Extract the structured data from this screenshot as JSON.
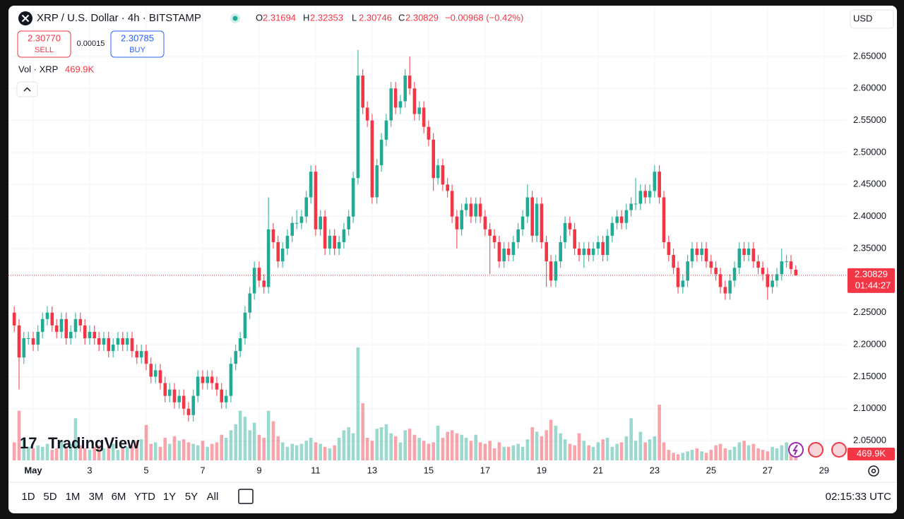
{
  "ui": {
    "symbol": "XRP / U.S. Dollar · 4h · BITSTAMP",
    "ohlc_keys": [
      "O",
      "H",
      "L",
      "C"
    ],
    "change": "−0.00968 (−0.42%)",
    "sell_price": "2.30770",
    "sell": "SELL",
    "spread": "0.00015",
    "buy_price": "2.30785",
    "buy": "BUY",
    "vol_label": "Vol · XRP",
    "vol_value": "469.9K",
    "currency": "USD",
    "countdown": "01:44:27",
    "logo": "TradingView",
    "ranges": [
      "1D",
      "5D",
      "1M",
      "3M",
      "6M",
      "YTD",
      "1Y",
      "5Y",
      "All"
    ],
    "clock": "02:15:33 UTC"
  },
  "chart_data": {
    "type": "candlestick",
    "up_color": "#22ab94",
    "down_color": "#f23645",
    "grid": true,
    "xlim": [
      0.2,
      29.78
    ],
    "ylim": [
      2.016,
      2.727
    ],
    "xticks": [
      {
        "value": 1,
        "label": "May"
      },
      3,
      5,
      7,
      9,
      11,
      13,
      15,
      17,
      19,
      21,
      23,
      25,
      27,
      29
    ],
    "yticks": [
      {
        "value": 2.05,
        "label": "2.05000"
      },
      {
        "value": 2.1,
        "label": "2.10000"
      },
      {
        "value": 2.15,
        "label": "2.15000"
      },
      {
        "value": 2.2,
        "label": "2.20000"
      },
      {
        "value": 2.25,
        "label": "2.25000"
      },
      {
        "value": 2.35,
        "label": "2.35000"
      },
      {
        "value": 2.4,
        "label": "2.40000"
      },
      {
        "value": 2.45,
        "label": "2.45000"
      },
      {
        "value": 2.5,
        "label": "2.50000"
      },
      {
        "value": 2.55,
        "label": "2.55000"
      },
      {
        "value": 2.6,
        "label": "2.60000"
      },
      {
        "value": 2.65,
        "label": "2.65000"
      }
    ],
    "x": [
      0.33,
      0.5,
      0.67,
      0.83,
      1,
      1.17,
      1.33,
      1.5,
      1.67,
      1.83,
      2,
      2.17,
      2.33,
      2.5,
      2.67,
      2.83,
      3,
      3.17,
      3.33,
      3.5,
      3.67,
      3.83,
      4,
      4.17,
      4.33,
      4.5,
      4.67,
      4.83,
      5,
      5.17,
      5.33,
      5.5,
      5.67,
      5.83,
      6,
      6.17,
      6.33,
      6.5,
      6.67,
      6.83,
      7,
      7.17,
      7.33,
      7.5,
      7.67,
      7.83,
      8,
      8.17,
      8.33,
      8.5,
      8.67,
      8.83,
      9,
      9.17,
      9.33,
      9.5,
      9.67,
      9.83,
      10,
      10.17,
      10.33,
      10.5,
      10.67,
      10.83,
      11,
      11.17,
      11.33,
      11.5,
      11.67,
      11.83,
      12,
      12.17,
      12.33,
      12.5,
      12.67,
      12.83,
      13,
      13.17,
      13.33,
      13.5,
      13.67,
      13.83,
      14,
      14.17,
      14.33,
      14.5,
      14.67,
      14.83,
      15,
      15.17,
      15.33,
      15.5,
      15.67,
      15.83,
      16,
      16.17,
      16.33,
      16.5,
      16.67,
      16.83,
      17,
      17.17,
      17.33,
      17.5,
      17.67,
      17.83,
      18,
      18.17,
      18.33,
      18.5,
      18.67,
      18.83,
      19,
      19.17,
      19.33,
      19.5,
      19.67,
      19.83,
      20,
      20.17,
      20.33,
      20.5,
      20.67,
      20.83,
      21,
      21.17,
      21.33,
      21.5,
      21.67,
      21.83,
      22,
      22.17,
      22.33,
      22.5,
      22.67,
      22.83,
      23,
      23.17,
      23.33,
      23.5,
      23.67,
      23.83,
      24,
      24.17,
      24.33,
      24.5,
      24.67,
      24.83,
      25,
      25.17,
      25.33,
      25.5,
      25.67,
      25.83,
      26,
      26.17,
      26.33,
      26.5,
      26.67,
      26.83,
      27,
      27.17,
      27.33,
      27.5,
      27.67,
      27.83,
      28
    ],
    "open": [
      2.25,
      2.23,
      2.18,
      2.21,
      2.21,
      2.2,
      2.22,
      2.24,
      2.25,
      2.23,
      2.22,
      2.24,
      2.21,
      2.22,
      2.24,
      2.23,
      2.21,
      2.22,
      2.21,
      2.2,
      2.21,
      2.19,
      2.2,
      2.21,
      2.2,
      2.21,
      2.19,
      2.18,
      2.19,
      2.17,
      2.15,
      2.16,
      2.14,
      2.12,
      2.13,
      2.11,
      2.12,
      2.1,
      2.09,
      2.12,
      2.15,
      2.14,
      2.15,
      2.14,
      2.13,
      2.11,
      2.12,
      2.17,
      2.19,
      2.21,
      2.25,
      2.28,
      2.32,
      2.3,
      2.29,
      2.38,
      2.36,
      2.33,
      2.35,
      2.37,
      2.39,
      2.39,
      2.4,
      2.43,
      2.47,
      2.38,
      2.4,
      2.35,
      2.37,
      2.35,
      2.36,
      2.38,
      2.4,
      2.46,
      2.62,
      2.57,
      2.55,
      2.43,
      2.48,
      2.52,
      2.55,
      2.6,
      2.57,
      2.58,
      2.62,
      2.6,
      2.56,
      2.57,
      2.54,
      2.52,
      2.46,
      2.48,
      2.45,
      2.44,
      2.4,
      2.38,
      2.41,
      2.42,
      2.4,
      2.42,
      2.4,
      2.38,
      2.37,
      2.36,
      2.33,
      2.35,
      2.34,
      2.36,
      2.38,
      2.4,
      2.43,
      2.37,
      2.42,
      2.36,
      2.33,
      2.3,
      2.33,
      2.36,
      2.39,
      2.38,
      2.35,
      2.34,
      2.35,
      2.34,
      2.35,
      2.36,
      2.34,
      2.37,
      2.39,
      2.4,
      2.39,
      2.41,
      2.42,
      2.42,
      2.44,
      2.43,
      2.44,
      2.47,
      2.43,
      2.36,
      2.34,
      2.32,
      2.29,
      2.3,
      2.33,
      2.35,
      2.34,
      2.35,
      2.33,
      2.32,
      2.31,
      2.29,
      2.28,
      2.3,
      2.32,
      2.35,
      2.34,
      2.35,
      2.33,
      2.32,
      2.31,
      2.29,
      2.3,
      2.31,
      2.33,
      2.33,
      2.31694
    ],
    "high": [
      2.26,
      2.24,
      2.22,
      2.22,
      2.22,
      2.23,
      2.25,
      2.26,
      2.26,
      2.24,
      2.25,
      2.25,
      2.23,
      2.25,
      2.25,
      2.24,
      2.23,
      2.23,
      2.22,
      2.22,
      2.22,
      2.21,
      2.22,
      2.22,
      2.22,
      2.22,
      2.2,
      2.2,
      2.2,
      2.18,
      2.17,
      2.17,
      2.15,
      2.14,
      2.14,
      2.13,
      2.13,
      2.11,
      2.13,
      2.16,
      2.16,
      2.16,
      2.16,
      2.15,
      2.14,
      2.13,
      2.18,
      2.2,
      2.22,
      2.26,
      2.29,
      2.33,
      2.33,
      2.31,
      2.43,
      2.39,
      2.37,
      2.36,
      2.38,
      2.4,
      2.41,
      2.41,
      2.44,
      2.48,
      2.48,
      2.41,
      2.41,
      2.38,
      2.38,
      2.37,
      2.39,
      2.41,
      2.47,
      2.66,
      2.63,
      2.58,
      2.56,
      2.49,
      2.53,
      2.56,
      2.61,
      2.61,
      2.59,
      2.63,
      2.65,
      2.61,
      2.58,
      2.58,
      2.55,
      2.53,
      2.49,
      2.49,
      2.46,
      2.45,
      2.41,
      2.42,
      2.43,
      2.43,
      2.43,
      2.43,
      2.41,
      2.39,
      2.38,
      2.37,
      2.36,
      2.36,
      2.37,
      2.39,
      2.41,
      2.45,
      2.44,
      2.43,
      2.43,
      2.37,
      2.34,
      2.34,
      2.37,
      2.4,
      2.4,
      2.39,
      2.36,
      2.36,
      2.36,
      2.36,
      2.37,
      2.37,
      2.38,
      2.4,
      2.41,
      2.41,
      2.42,
      2.43,
      2.46,
      2.45,
      2.45,
      2.45,
      2.48,
      2.48,
      2.44,
      2.37,
      2.35,
      2.33,
      2.31,
      2.34,
      2.36,
      2.36,
      2.36,
      2.36,
      2.34,
      2.33,
      2.32,
      2.3,
      2.31,
      2.33,
      2.36,
      2.36,
      2.36,
      2.36,
      2.34,
      2.33,
      2.32,
      2.31,
      2.32,
      2.35,
      2.34,
      2.34,
      2.32353
    ],
    "low": [
      2.22,
      2.13,
      2.17,
      2.2,
      2.19,
      2.19,
      2.21,
      2.23,
      2.22,
      2.21,
      2.21,
      2.2,
      2.2,
      2.21,
      2.22,
      2.2,
      2.2,
      2.2,
      2.19,
      2.19,
      2.18,
      2.18,
      2.19,
      2.19,
      2.19,
      2.18,
      2.17,
      2.17,
      2.16,
      2.14,
      2.14,
      2.13,
      2.11,
      2.11,
      2.1,
      2.1,
      2.09,
      2.08,
      2.08,
      2.11,
      2.13,
      2.13,
      2.13,
      2.12,
      2.1,
      2.1,
      2.11,
      2.16,
      2.18,
      2.2,
      2.24,
      2.27,
      2.29,
      2.28,
      2.28,
      2.35,
      2.32,
      2.32,
      2.34,
      2.36,
      2.38,
      2.38,
      2.39,
      2.42,
      2.37,
      2.37,
      2.34,
      2.34,
      2.34,
      2.34,
      2.35,
      2.37,
      2.39,
      2.45,
      2.56,
      2.54,
      2.42,
      2.42,
      2.47,
      2.51,
      2.54,
      2.56,
      2.56,
      2.57,
      2.59,
      2.55,
      2.55,
      2.53,
      2.51,
      2.44,
      2.45,
      2.44,
      2.43,
      2.39,
      2.35,
      2.37,
      2.4,
      2.39,
      2.39,
      2.39,
      2.37,
      2.31,
      2.35,
      2.32,
      2.32,
      2.33,
      2.33,
      2.35,
      2.37,
      2.39,
      2.36,
      2.36,
      2.35,
      2.29,
      2.29,
      2.29,
      2.32,
      2.35,
      2.37,
      2.34,
      2.33,
      2.32,
      2.33,
      2.33,
      2.34,
      2.33,
      2.33,
      2.36,
      2.38,
      2.38,
      2.38,
      2.4,
      2.41,
      2.41,
      2.42,
      2.42,
      2.43,
      2.42,
      2.35,
      2.33,
      2.31,
      2.28,
      2.28,
      2.29,
      2.32,
      2.33,
      2.33,
      2.32,
      2.31,
      2.3,
      2.28,
      2.27,
      2.27,
      2.29,
      2.31,
      2.33,
      2.33,
      2.32,
      2.31,
      2.3,
      2.27,
      2.28,
      2.29,
      2.3,
      2.32,
      2.31,
      2.30746
    ],
    "close": [
      2.23,
      2.18,
      2.21,
      2.21,
      2.2,
      2.22,
      2.24,
      2.25,
      2.23,
      2.22,
      2.24,
      2.21,
      2.22,
      2.24,
      2.23,
      2.21,
      2.22,
      2.21,
      2.2,
      2.21,
      2.19,
      2.2,
      2.21,
      2.2,
      2.21,
      2.19,
      2.18,
      2.19,
      2.17,
      2.15,
      2.16,
      2.14,
      2.12,
      2.13,
      2.11,
      2.12,
      2.1,
      2.09,
      2.12,
      2.15,
      2.14,
      2.15,
      2.14,
      2.13,
      2.11,
      2.12,
      2.17,
      2.19,
      2.21,
      2.25,
      2.28,
      2.32,
      2.3,
      2.29,
      2.38,
      2.36,
      2.33,
      2.35,
      2.37,
      2.39,
      2.39,
      2.4,
      2.43,
      2.47,
      2.38,
      2.4,
      2.35,
      2.37,
      2.35,
      2.36,
      2.38,
      2.4,
      2.46,
      2.62,
      2.57,
      2.55,
      2.43,
      2.48,
      2.52,
      2.55,
      2.6,
      2.57,
      2.58,
      2.62,
      2.6,
      2.56,
      2.57,
      2.54,
      2.52,
      2.46,
      2.48,
      2.45,
      2.44,
      2.4,
      2.38,
      2.41,
      2.42,
      2.4,
      2.42,
      2.4,
      2.38,
      2.37,
      2.36,
      2.33,
      2.35,
      2.34,
      2.36,
      2.38,
      2.4,
      2.43,
      2.37,
      2.42,
      2.36,
      2.33,
      2.3,
      2.33,
      2.36,
      2.39,
      2.38,
      2.35,
      2.34,
      2.35,
      2.34,
      2.35,
      2.36,
      2.34,
      2.37,
      2.39,
      2.4,
      2.39,
      2.41,
      2.42,
      2.42,
      2.44,
      2.43,
      2.44,
      2.47,
      2.43,
      2.36,
      2.34,
      2.32,
      2.29,
      2.3,
      2.33,
      2.35,
      2.34,
      2.35,
      2.33,
      2.32,
      2.31,
      2.29,
      2.28,
      2.3,
      2.32,
      2.35,
      2.34,
      2.35,
      2.33,
      2.32,
      2.31,
      2.29,
      2.3,
      2.31,
      2.33,
      2.33,
      2.318,
      2.30829
    ],
    "volume": [
      1200,
      3300,
      1400,
      900,
      800,
      1000,
      900,
      1100,
      700,
      800,
      1300,
      900,
      1100,
      2800,
      1000,
      800,
      700,
      900,
      1000,
      800,
      900,
      1100,
      700,
      800,
      900,
      1000,
      1300,
      1400,
      2350,
      1100,
      1200,
      900,
      1500,
      1100,
      1600,
      1300,
      1400,
      1200,
      1100,
      1000,
      1300,
      900,
      1100,
      1200,
      1700,
      1500,
      2000,
      2400,
      3300,
      2900,
      2000,
      2500,
      1700,
      1500,
      3300,
      2600,
      1600,
      1200,
      900,
      1100,
      1000,
      1100,
      1300,
      1500,
      1200,
      1100,
      900,
      800,
      1000,
      1500,
      2000,
      2200,
      1800,
      7500,
      3800,
      1500,
      1300,
      2100,
      2200,
      2400,
      1800,
      1600,
      1200,
      2000,
      2100,
      1700,
      1500,
      1300,
      1100,
      1200,
      2300,
      1500,
      1900,
      2000,
      1800,
      1700,
      1500,
      1300,
      1700,
      1200,
      1100,
      1300,
      800,
      1200,
      900,
      900,
      1000,
      1100,
      900,
      1400,
      2200,
      1900,
      1600,
      2000,
      2700,
      2300,
      1800,
      1400,
      1100,
      1000,
      1800,
      1300,
      1000,
      900,
      1200,
      1400,
      1500,
      900,
      1100,
      1200,
      1600,
      2800,
      1300,
      1900,
      1200,
      1400,
      1600,
      3700,
      1200,
      700,
      500,
      400,
      500,
      600,
      700,
      800,
      600,
      500,
      700,
      1000,
      1100,
      800,
      700,
      900,
      1200,
      1300,
      1000,
      1100,
      800,
      700,
      600,
      900,
      800,
      1000,
      1200,
      700,
      469.9
    ]
  }
}
